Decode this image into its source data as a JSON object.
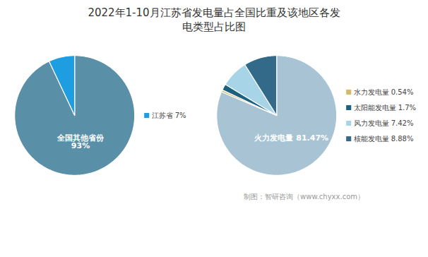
{
  "chart_data": [
    {
      "type": "pie",
      "title": "2022年1-10月江苏省发电量占全国比重及该地区各发\n电类型占比图",
      "categories": [
        "全国其他省份\n93%",
        "江苏省 7%"
      ],
      "values": [
        93,
        7
      ],
      "colors": [
        "#5a8fa8",
        "#1e9de0"
      ]
    },
    {
      "type": "pie",
      "categories": [
        "火力发电量 81.47%",
        "水力发电量 0.54%",
        "太阳能发电量 1.7%",
        "风力发电量 7.42%",
        "核能发电量 8.88%"
      ],
      "values": [
        81.47,
        0.54,
        1.7,
        7.42,
        8.88
      ],
      "colors": [
        "#a8c4d4",
        "#d4b96a",
        "#1e6080",
        "#a8d4e8",
        "#336a8a"
      ],
      "annotations": [
        "制图：智研咨询（www.chyxx.com）"
      ]
    }
  ]
}
